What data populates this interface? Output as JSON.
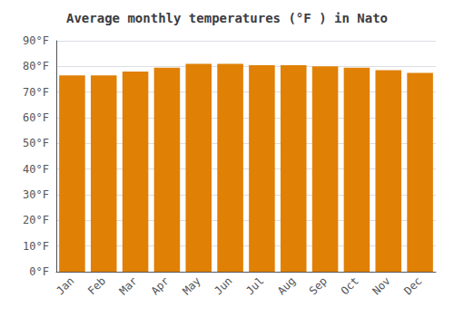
{
  "chart_data": {
    "type": "bar",
    "title": "Average monthly temperatures (°F ) in Nato",
    "categories": [
      "Jan",
      "Feb",
      "Mar",
      "Apr",
      "May",
      "Jun",
      "Jul",
      "Aug",
      "Sep",
      "Oct",
      "Nov",
      "Dec"
    ],
    "values": [
      76.5,
      76.5,
      78.0,
      79.5,
      81.0,
      81.0,
      80.5,
      80.5,
      80.0,
      79.5,
      78.5,
      77.5
    ],
    "color": "#E08005",
    "ylim": [
      0,
      90
    ],
    "yticks": [
      {
        "value": 0,
        "label": "0°F"
      },
      {
        "value": 10,
        "label": "10°F"
      },
      {
        "value": 20,
        "label": "20°F"
      },
      {
        "value": 30,
        "label": "30°F"
      },
      {
        "value": 40,
        "label": "40°F"
      },
      {
        "value": 50,
        "label": "50°F"
      },
      {
        "value": 60,
        "label": "60°F"
      },
      {
        "value": 70,
        "label": "70°F"
      },
      {
        "value": 80,
        "label": "80°F"
      },
      {
        "value": 90,
        "label": "90°F"
      }
    ],
    "grid": true
  }
}
